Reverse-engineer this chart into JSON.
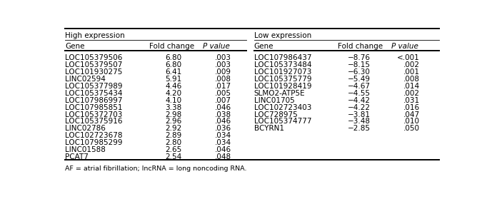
{
  "high_expression": {
    "header": [
      "Gene",
      "Fold change",
      "P value"
    ],
    "rows": [
      [
        "LOC105379506",
        "6.80",
        ".003"
      ],
      [
        "LOC105379507",
        "6.80",
        ".003"
      ],
      [
        "LOC101930275",
        "6.41",
        ".009"
      ],
      [
        "LINC02594",
        "5.91",
        ".008"
      ],
      [
        "LOC105377989",
        "4.46",
        ".017"
      ],
      [
        "LOC105375434",
        "4.20",
        ".005"
      ],
      [
        "LOC107986997",
        "4.10",
        ".007"
      ],
      [
        "LOC107985851",
        "3.38",
        ".046"
      ],
      [
        "LOC105372703",
        "2.98",
        ".038"
      ],
      [
        "LOC105375916",
        "2.96",
        ".046"
      ],
      [
        "LINC02786",
        "2.92",
        ".036"
      ],
      [
        "LOC102723678",
        "2.89",
        ".034"
      ],
      [
        "LOC107985299",
        "2.80",
        ".034"
      ],
      [
        "LINC01588",
        "2.65",
        ".046"
      ],
      [
        "PCAT7",
        "2.54",
        ".048"
      ]
    ]
  },
  "low_expression": {
    "header": [
      "Gene",
      "Fold change",
      "P value"
    ],
    "rows": [
      [
        "LOC107986437",
        "−8.76",
        "<.001"
      ],
      [
        "LOC105373484",
        "−8.15",
        ".002"
      ],
      [
        "LOC101927073",
        "−6.30",
        ".001"
      ],
      [
        "LOC105375779",
        "−5.49",
        ".008"
      ],
      [
        "LOC101928419",
        "−4.67",
        ".014"
      ],
      [
        "SLMO2-ATP5E",
        "−4.55",
        ".002"
      ],
      [
        "LINC01705",
        "−4.42",
        ".031"
      ],
      [
        "LOC102723403",
        "−4.22",
        ".016"
      ],
      [
        "LOC728975",
        "−3.81",
        ".047"
      ],
      [
        "LOC105374777",
        "−3.48",
        ".010"
      ],
      [
        "BCYRN1",
        "−2.85",
        ".050"
      ]
    ]
  },
  "footnote": "AF = atrial fibrillation; lncRNA = long noncoding RNA.",
  "section_labels": [
    "High expression",
    "Low expression"
  ],
  "bg_color": "#ffffff",
  "text_color": "#000000",
  "font_size": 7.5,
  "header_font_size": 7.5,
  "section_font_size": 7.5,
  "thick_lw": 1.4,
  "thin_lw": 0.6
}
